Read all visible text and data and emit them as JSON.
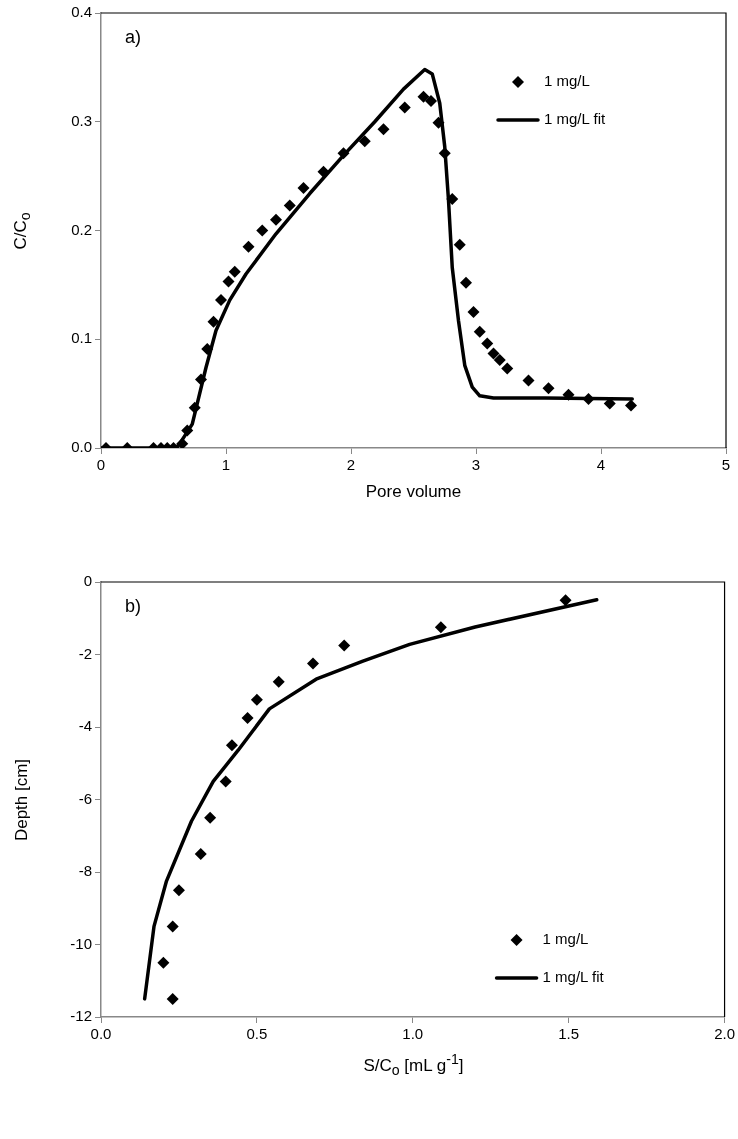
{
  "chart_data": [
    {
      "type": "scatter",
      "xlabel": "Pore volume",
      "ylabel": "C/C$_{o}$",
      "annotations": [
        "a)"
      ],
      "legend": "top right",
      "grid": false,
      "xlim": [
        0,
        5
      ],
      "xticks": [
        0,
        1,
        2,
        3,
        4,
        5
      ],
      "ylim": [
        0,
        0.4
      ],
      "yticks": [
        {
          "value": 0,
          "label": "0.0"
        },
        {
          "value": 0.1,
          "label": "0.1"
        },
        {
          "value": 0.2,
          "label": "0.2"
        },
        {
          "value": 0.3,
          "label": "0.3"
        },
        {
          "value": 0.4,
          "label": "0.4"
        }
      ],
      "series": [
        {
          "name": "1 mg/L",
          "type": "scatter",
          "marker": "diamond",
          "color": "#000000",
          "x": [
            0.04,
            0.21,
            0.42,
            0.48,
            0.53,
            0.58,
            0.65,
            0.69,
            0.75,
            0.8,
            0.85,
            0.9,
            0.96,
            1.02,
            1.07,
            1.18,
            1.29,
            1.4,
            1.51,
            1.62,
            1.78,
            1.94,
            2.11,
            2.26,
            2.43,
            2.58,
            2.64,
            2.7,
            2.75,
            2.81,
            2.87,
            2.92,
            2.98,
            3.03,
            3.09,
            3.14,
            3.19,
            3.25,
            3.42,
            3.58,
            3.74,
            3.9,
            4.07,
            4.24
          ],
          "values": [
            0,
            0,
            0,
            0,
            0,
            0,
            0.004,
            0.016,
            0.037,
            0.063,
            0.091,
            0.116,
            0.136,
            0.153,
            0.162,
            0.185,
            0.2,
            0.21,
            0.223,
            0.239,
            0.254,
            0.271,
            0.282,
            0.293,
            0.313,
            0.323,
            0.319,
            0.299,
            0.271,
            0.229,
            0.187,
            0.152,
            0.125,
            0.107,
            0.096,
            0.087,
            0.081,
            0.073,
            0.062,
            0.055,
            0.049,
            0.045,
            0.041,
            0.039
          ]
        },
        {
          "name": "1 mg/L fit",
          "type": "line",
          "marker": "none",
          "line_style": "solid",
          "color": "#000000",
          "x": [
            0,
            0.6,
            0.63,
            0.73,
            0.84,
            0.92,
            1.03,
            1.16,
            1.4,
            1.67,
            1.94,
            2.19,
            2.42,
            2.59,
            2.65,
            2.71,
            2.75,
            2.78,
            2.81,
            2.86,
            2.91,
            2.97,
            3.03,
            3.14,
            3.55,
            4.25
          ],
          "values": [
            0,
            0,
            0.004,
            0.022,
            0.074,
            0.108,
            0.136,
            0.16,
            0.197,
            0.234,
            0.269,
            0.3,
            0.33,
            0.348,
            0.344,
            0.317,
            0.277,
            0.228,
            0.166,
            0.117,
            0.076,
            0.056,
            0.048,
            0.046,
            0.046,
            0.045
          ]
        }
      ]
    },
    {
      "type": "scatter",
      "xlabel": "S/C$_{o}$ [mL g$^{-1}$]",
      "ylabel": "Depth [cm]",
      "annotations": [
        "b)"
      ],
      "legend": "bottom right",
      "grid": false,
      "xlim": [
        0,
        2
      ],
      "xticks": [
        {
          "value": 0,
          "label": "0.0"
        },
        {
          "value": 0.5,
          "label": "0.5"
        },
        {
          "value": 1,
          "label": "1.0"
        },
        {
          "value": 1.5,
          "label": "1.5"
        },
        {
          "value": 2,
          "label": "2.0"
        }
      ],
      "ylim": [
        -12,
        0
      ],
      "yticks": [
        -12,
        -10,
        -8,
        -6,
        -4,
        -2,
        0
      ],
      "series": [
        {
          "name": "1 mg/L",
          "type": "scatter",
          "marker": "diamond",
          "color": "#000000",
          "x": [
            1.49,
            1.09,
            0.78,
            0.68,
            0.57,
            0.5,
            0.47,
            0.42,
            0.4,
            0.35,
            0.32,
            0.25,
            0.23,
            0.2,
            0.23
          ],
          "values": [
            -0.5,
            -1.25,
            -1.75,
            -2.25,
            -2.75,
            -3.25,
            -3.75,
            -4.5,
            -5.5,
            -6.5,
            -7.5,
            -8.5,
            -9.5,
            -10.5,
            -11.5
          ]
        },
        {
          "name": "1 mg/L fit",
          "type": "line",
          "marker": "none",
          "line_style": "solid",
          "color": "#000000",
          "x": [
            0.14,
            0.17,
            0.21,
            0.29,
            0.36,
            0.44,
            0.54,
            0.69,
            0.84,
            0.99,
            1.2,
            1.59
          ],
          "values": [
            -11.5,
            -9.5,
            -8.25,
            -6.6,
            -5.5,
            -4.64,
            -3.5,
            -2.68,
            -2.18,
            -1.72,
            -1.24,
            -0.49
          ]
        }
      ]
    }
  ]
}
